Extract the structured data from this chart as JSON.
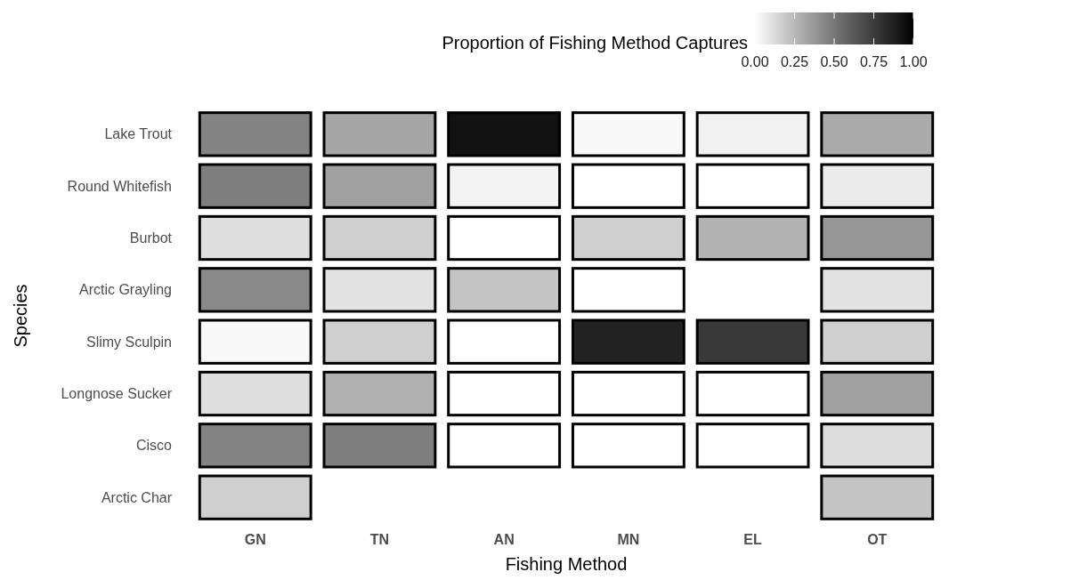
{
  "chart_data": {
    "type": "heatmap",
    "xlabel": "Fishing Method",
    "ylabel": "Species",
    "clabel": "Proportion of Fishing Method Captures",
    "categories": [
      "GN",
      "TN",
      "AN",
      "MN",
      "EL",
      "OT"
    ],
    "y_categories": [
      "Lake Trout",
      "Round Whitefish",
      "Burbot",
      "Arctic Grayling",
      "Slimy Sculpin",
      "Longnose Sucker",
      "Cisco",
      "Arctic Char"
    ],
    "cells": [
      [
        0.45,
        0.32,
        0.95,
        0.02,
        0.05,
        0.3
      ],
      [
        0.47,
        0.34,
        0.04,
        0,
        0,
        0.07
      ],
      [
        0.11,
        0.17,
        0,
        0.17,
        0.27,
        0.38
      ],
      [
        0.43,
        0.1,
        0.21,
        0,
        null,
        0.1
      ],
      [
        0.02,
        0.17,
        0,
        0.87,
        0.76,
        0.17
      ],
      [
        0.11,
        0.28,
        0,
        0,
        0,
        0.34
      ],
      [
        0.45,
        0.47,
        0,
        0,
        0,
        0.12
      ],
      [
        0.17,
        null,
        null,
        null,
        null,
        0.21
      ]
    ],
    "clim": [
      0,
      1
    ],
    "cticks": [
      {
        "value": 0,
        "label": "0.00"
      },
      {
        "value": 0.25,
        "label": "0.25"
      },
      {
        "value": 0.5,
        "label": "0.50"
      },
      {
        "value": 0.75,
        "label": "0.75"
      },
      {
        "value": 1,
        "label": "1.00"
      }
    ]
  }
}
